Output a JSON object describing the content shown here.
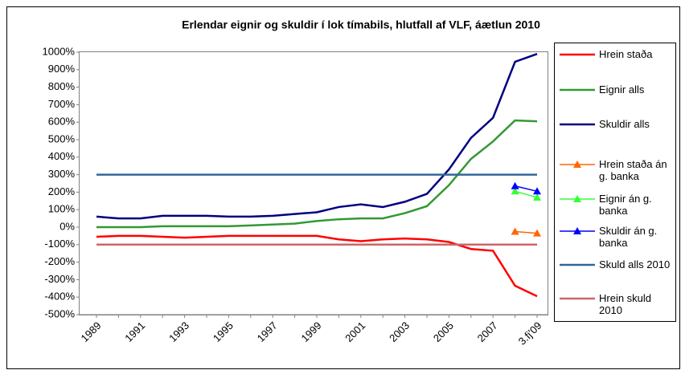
{
  "chart_data": {
    "type": "line",
    "title": "Erlendar eignir og skuldir í lok tímabils, hlutfall af VLF, áætlun 2010",
    "categories": [
      "1989",
      null,
      "1991",
      null,
      "1993",
      null,
      "1995",
      null,
      "1997",
      null,
      "1999",
      null,
      "2001",
      null,
      "2003",
      null,
      "2005",
      null,
      "2007",
      null,
      "3.fj'09"
    ],
    "series": [
      {
        "name": "Hrein staða",
        "color": "#ff0000",
        "values": [
          -55,
          -50,
          -50,
          -55,
          -60,
          -55,
          -50,
          -50,
          -50,
          -50,
          -50,
          -70,
          -80,
          -70,
          -65,
          -70,
          -85,
          -125,
          -135,
          -335,
          -395
        ]
      },
      {
        "name": "Eignir alls",
        "color": "#339933",
        "values": [
          0,
          0,
          0,
          5,
          5,
          5,
          5,
          10,
          15,
          20,
          35,
          45,
          50,
          50,
          80,
          120,
          240,
          390,
          490,
          610,
          605
        ]
      },
      {
        "name": "Skuldir alls",
        "color": "#000080",
        "values": [
          60,
          50,
          50,
          65,
          65,
          65,
          60,
          60,
          65,
          75,
          85,
          115,
          130,
          115,
          145,
          190,
          330,
          510,
          625,
          945,
          990
        ]
      },
      {
        "name": "Hrein staða án g. banka",
        "color": "#ff6600",
        "marker": "triangle",
        "values": [
          null,
          null,
          null,
          null,
          null,
          null,
          null,
          null,
          null,
          null,
          null,
          null,
          null,
          null,
          null,
          null,
          null,
          null,
          null,
          -25,
          -35
        ]
      },
      {
        "name": "Eignir án g. banka",
        "color": "#33ff33",
        "marker": "triangle",
        "values": [
          null,
          null,
          null,
          null,
          null,
          null,
          null,
          null,
          null,
          null,
          null,
          null,
          null,
          null,
          null,
          null,
          null,
          null,
          null,
          205,
          170
        ]
      },
      {
        "name": "Skuldir án g. banka",
        "color": "#0000ff",
        "marker": "triangle",
        "values": [
          null,
          null,
          null,
          null,
          null,
          null,
          null,
          null,
          null,
          null,
          null,
          null,
          null,
          null,
          null,
          null,
          null,
          null,
          null,
          235,
          205
        ]
      },
      {
        "name": "Skuld alls 2010",
        "color": "#336699",
        "values": [
          300,
          300,
          300,
          300,
          300,
          300,
          300,
          300,
          300,
          300,
          300,
          300,
          300,
          300,
          300,
          300,
          300,
          300,
          300,
          300,
          300
        ]
      },
      {
        "name": "Hrein skuld 2010",
        "color": "#cc6666",
        "values": [
          -100,
          -100,
          -100,
          -100,
          -100,
          -100,
          -100,
          -100,
          -100,
          -100,
          -100,
          -100,
          -100,
          -100,
          -100,
          -100,
          -100,
          -100,
          -100,
          -100,
          -100
        ]
      }
    ],
    "ylim": [
      -500,
      1000
    ],
    "yticks": [
      {
        "value": -500,
        "label": "-500%"
      },
      {
        "value": -400,
        "label": "-400%"
      },
      {
        "value": -300,
        "label": "-300%"
      },
      {
        "value": -200,
        "label": "-200%"
      },
      {
        "value": -100,
        "label": "-100%"
      },
      {
        "value": 0,
        "label": "0%"
      },
      {
        "value": 100,
        "label": "100%"
      },
      {
        "value": 200,
        "label": "200%"
      },
      {
        "value": 300,
        "label": "300%"
      },
      {
        "value": 400,
        "label": "400%"
      },
      {
        "value": 500,
        "label": "500%"
      },
      {
        "value": 600,
        "label": "600%"
      },
      {
        "value": 700,
        "label": "700%"
      },
      {
        "value": 800,
        "label": "800%"
      },
      {
        "value": 900,
        "label": "900%"
      },
      {
        "value": 1000,
        "label": "1000%"
      }
    ],
    "grid": false,
    "legend": "right"
  }
}
